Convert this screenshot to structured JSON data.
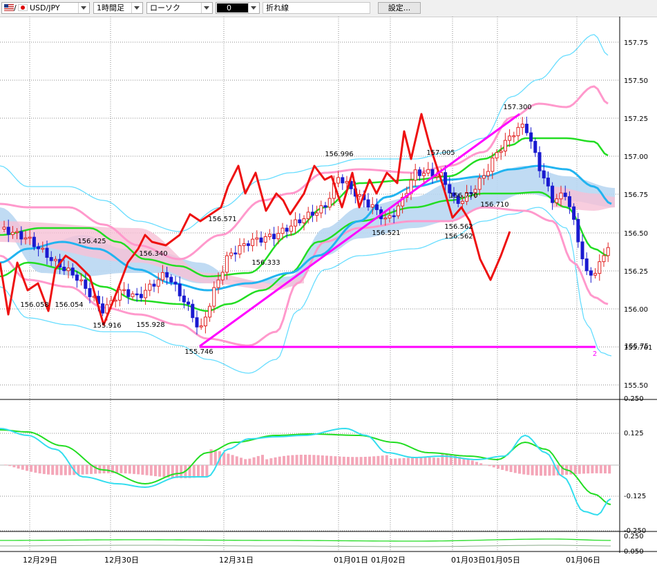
{
  "toolbar": {
    "pair_label": "USD/JPY",
    "pair_prefix": "/",
    "timeframe": "1時間足",
    "chart_type": "ローソク",
    "indicator_value": "0",
    "sub_type": "折れ線",
    "settings_label": "設定..."
  },
  "price_axis": [
    "157.75",
    "157.50",
    "157.25",
    "157.00",
    "156.75",
    "156.50",
    "156.25",
    "156.00",
    "155.761",
    "155.50"
  ],
  "osc_axis": [
    "0.250",
    "0.125",
    "-0.125",
    "-0.250"
  ],
  "vol_axis": [
    "0.250",
    "0.050"
  ],
  "date_labels": [
    "12月29日",
    "12月30日",
    "12月31日",
    "01月01日",
    "01月02日",
    "01月03日",
    "01月05日",
    "01月06日"
  ],
  "annotations": [
    "156.425",
    "156.340",
    "156.571",
    "156.333",
    "156.996",
    "157.005",
    "156.770",
    "156.710",
    "157.300",
    "156.058",
    "156.054",
    "155.916",
    "155.928",
    "155.746",
    "156.521",
    "156.562",
    "156.562"
  ],
  "hline_label": "2",
  "colors": {
    "up": "#e02020",
    "down": "#1a1ad0",
    "trend": "#ff00ff",
    "cloud_up": "#b9d7f2",
    "cloud_dn": "#f6c0d6",
    "bb_inner": "#ff99cc",
    "bb_outer": "#66ddff",
    "ma_green": "#22dd22",
    "ma_blue": "#22b4f0",
    "signal": "#ee1111"
  }
}
